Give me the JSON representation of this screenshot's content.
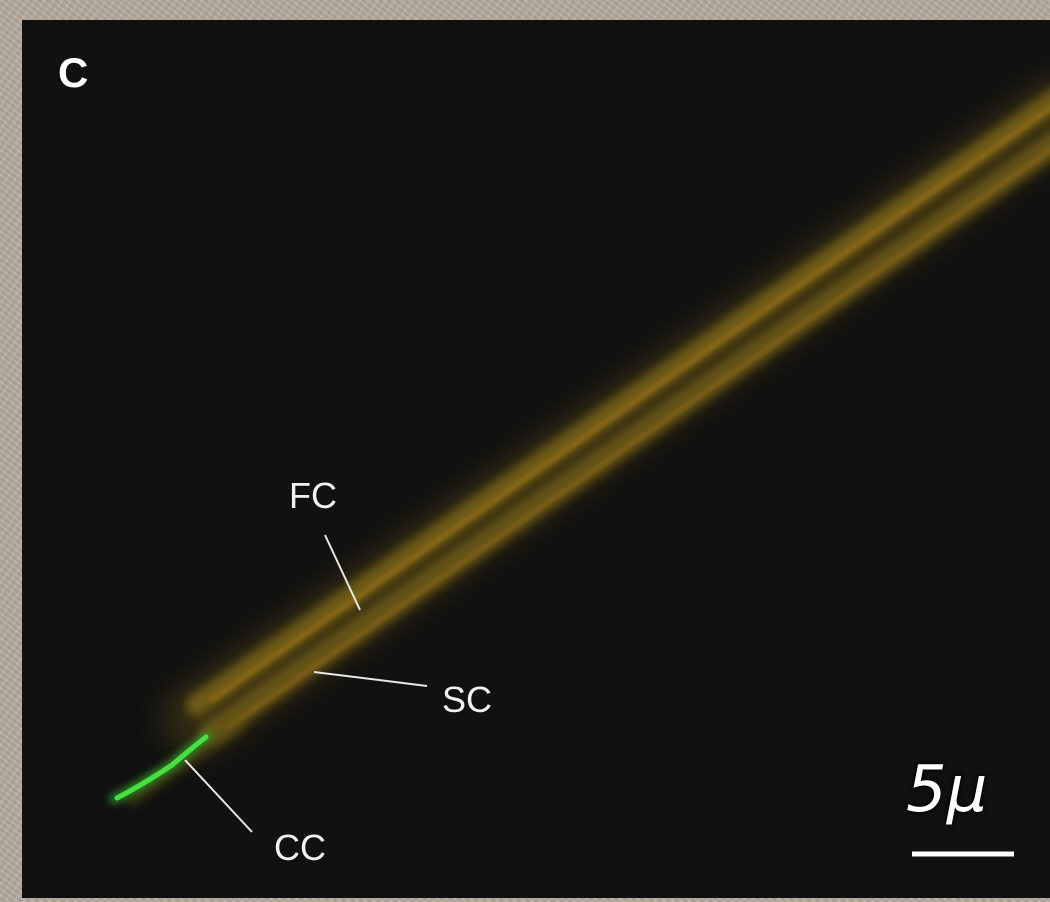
{
  "figure": {
    "panel_label": "C",
    "labels": {
      "fc": "FC",
      "sc": "SC",
      "cc": "CC"
    },
    "scale_bar": {
      "text": "5μ"
    },
    "colors": {
      "background": "#111111",
      "sheath": "#8a7418",
      "sheath_core": "#9a6a1c",
      "green_signal": "#3ddc3a",
      "annotation": "#e8e8e8"
    }
  }
}
